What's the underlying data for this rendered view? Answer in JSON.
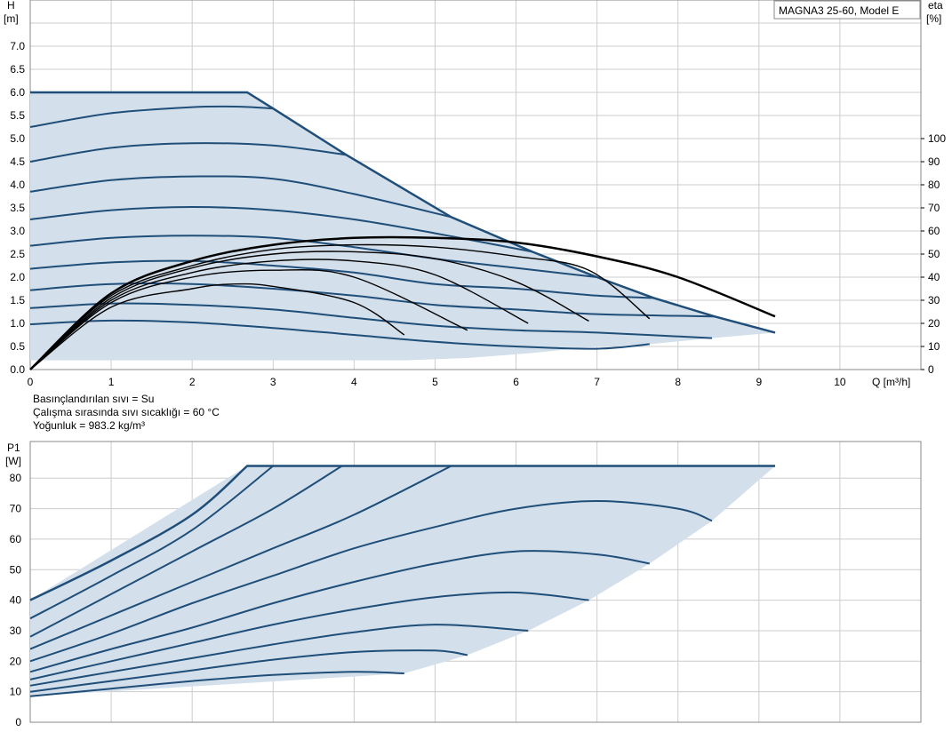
{
  "chart_data": [
    {
      "type": "line",
      "model_label": "MAGNA3 25-60, Model E",
      "ylabel_name": "H",
      "ylabel_unit": "[m]",
      "y2label_name": "eta",
      "y2label_unit": "[%]",
      "xlabel": "Q [m³/h]",
      "xlim": [
        0,
        11
      ],
      "ylim": [
        0,
        8
      ],
      "y2lim": [
        0,
        160
      ],
      "x_ticks": [
        "0",
        "1",
        "2",
        "3",
        "4",
        "5",
        "6",
        "7",
        "8",
        "9",
        "10"
      ],
      "y_ticks": [
        "0.0",
        "0.5",
        "1.0",
        "1.5",
        "2.0",
        "2.5",
        "3.0",
        "3.5",
        "4.0",
        "4.5",
        "5.0",
        "5.5",
        "6.0",
        "6.5",
        "7.0"
      ],
      "y2_ticks": [
        "0",
        "10",
        "20",
        "30",
        "40",
        "50",
        "60",
        "70",
        "80",
        "90",
        "100"
      ],
      "grid": true,
      "colors": {
        "head": "#1f4e79",
        "fill": "#d3dfeb",
        "efficiency": "#000000",
        "grid": "#cccccc"
      },
      "envelope": [
        [
          0,
          6.0
        ],
        [
          2.68,
          6.0
        ],
        [
          3.0,
          5.65
        ],
        [
          3.9,
          4.65
        ],
        [
          5.2,
          3.3
        ],
        [
          6.2,
          2.55
        ],
        [
          7.0,
          2.0
        ],
        [
          7.7,
          1.55
        ],
        [
          8.45,
          1.15
        ],
        [
          9.2,
          0.8
        ],
        [
          8.42,
          0.68
        ],
        [
          7.65,
          0.55
        ],
        [
          6.9,
          0.48
        ],
        [
          6.15,
          0.35
        ],
        [
          5.4,
          0.25
        ],
        [
          4.62,
          0.2
        ],
        [
          0,
          0.2
        ]
      ],
      "head_curves": [
        {
          "h0": 6.0,
          "points": [
            [
              0,
              6.0
            ],
            [
              2.68,
              6.0
            ],
            [
              3.0,
              5.65
            ],
            [
              3.9,
              4.65
            ],
            [
              5.2,
              3.3
            ],
            [
              6.2,
              2.55
            ],
            [
              7.0,
              2.0
            ],
            [
              7.7,
              1.55
            ],
            [
              8.45,
              1.15
            ],
            [
              9.2,
              0.8
            ]
          ]
        },
        {
          "h0": 5.25,
          "points": [
            [
              0,
              5.25
            ],
            [
              1.0,
              5.55
            ],
            [
              2.0,
              5.68
            ],
            [
              2.6,
              5.69
            ],
            [
              3.0,
              5.65
            ]
          ]
        },
        {
          "h0": 4.5,
          "points": [
            [
              0,
              4.5
            ],
            [
              1.0,
              4.8
            ],
            [
              2.0,
              4.9
            ],
            [
              3.0,
              4.85
            ],
            [
              3.9,
              4.65
            ]
          ]
        },
        {
          "h0": 3.85,
          "points": [
            [
              0,
              3.85
            ],
            [
              1.0,
              4.1
            ],
            [
              2.0,
              4.18
            ],
            [
              3.0,
              4.13
            ],
            [
              4.0,
              3.8
            ],
            [
              5.2,
              3.3
            ]
          ]
        },
        {
          "h0": 3.25,
          "points": [
            [
              0,
              3.25
            ],
            [
              1.0,
              3.45
            ],
            [
              2.0,
              3.52
            ],
            [
              3.0,
              3.45
            ],
            [
              4.0,
              3.25
            ],
            [
              5.0,
              2.95
            ],
            [
              6.2,
              2.55
            ]
          ]
        },
        {
          "h0": 2.68,
          "points": [
            [
              0,
              2.68
            ],
            [
              1.0,
              2.85
            ],
            [
              2.0,
              2.9
            ],
            [
              3.0,
              2.85
            ],
            [
              4.0,
              2.65
            ],
            [
              5.0,
              2.4
            ],
            [
              6.0,
              2.2
            ],
            [
              7.0,
              2.0
            ]
          ]
        },
        {
          "h0": 2.18,
          "points": [
            [
              0,
              2.18
            ],
            [
              1.0,
              2.32
            ],
            [
              2.0,
              2.35
            ],
            [
              3.0,
              2.25
            ],
            [
              4.0,
              2.1
            ],
            [
              5.0,
              1.85
            ],
            [
              6.0,
              1.75
            ],
            [
              7.0,
              1.6
            ],
            [
              7.7,
              1.55
            ]
          ]
        },
        {
          "h0": 1.72,
          "points": [
            [
              0,
              1.72
            ],
            [
              1.0,
              1.85
            ],
            [
              2.0,
              1.85
            ],
            [
              3.0,
              1.75
            ],
            [
              4.0,
              1.6
            ],
            [
              5.0,
              1.4
            ],
            [
              6.0,
              1.3
            ],
            [
              7.0,
              1.2
            ],
            [
              8.45,
              1.15
            ]
          ]
        },
        {
          "h0": 1.33,
          "points": [
            [
              0,
              1.33
            ],
            [
              1.0,
              1.43
            ],
            [
              2.0,
              1.4
            ],
            [
              3.0,
              1.3
            ],
            [
              4.0,
              1.12
            ],
            [
              5.0,
              0.95
            ],
            [
              6.0,
              0.85
            ],
            [
              7.0,
              0.8
            ],
            [
              8.42,
              0.68
            ]
          ]
        },
        {
          "h0": 0.98,
          "points": [
            [
              0,
              0.98
            ],
            [
              1.0,
              1.06
            ],
            [
              2.0,
              1.02
            ],
            [
              3.0,
              0.9
            ],
            [
              4.0,
              0.75
            ],
            [
              5.0,
              0.6
            ],
            [
              6.0,
              0.5
            ],
            [
              7.0,
              0.45
            ],
            [
              7.65,
              0.55
            ]
          ]
        }
      ],
      "efficiency_curves": [
        {
          "points": [
            [
              0,
              0
            ],
            [
              1.0,
              33
            ],
            [
              2.0,
              47
            ],
            [
              3.0,
              54
            ],
            [
              4.0,
              57
            ],
            [
              5.0,
              57
            ],
            [
              6.0,
              55
            ],
            [
              7.0,
              49
            ],
            [
              8.0,
              40
            ],
            [
              9.2,
              23
            ]
          ]
        },
        {
          "points": [
            [
              0,
              0
            ],
            [
              1.0,
              32
            ],
            [
              2.0,
              45
            ],
            [
              3.0,
              52
            ],
            [
              4.0,
              54
            ],
            [
              5.0,
              53
            ],
            [
              6.0,
              49
            ],
            [
              6.9,
              43
            ],
            [
              7.65,
              22
            ]
          ]
        },
        {
          "points": [
            [
              0,
              0
            ],
            [
              1.0,
              31
            ],
            [
              2.0,
              44
            ],
            [
              3.0,
              50
            ],
            [
              4.0,
              51
            ],
            [
              5.0,
              48
            ],
            [
              6.0,
              38
            ],
            [
              6.9,
              21
            ]
          ]
        },
        {
          "points": [
            [
              0,
              0
            ],
            [
              1.0,
              30
            ],
            [
              2.0,
              42
            ],
            [
              3.0,
              47
            ],
            [
              4.0,
              47
            ],
            [
              5.0,
              41
            ],
            [
              6.15,
              20
            ]
          ]
        },
        {
          "points": [
            [
              0,
              0
            ],
            [
              1.0,
              29
            ],
            [
              2.0,
              40
            ],
            [
              3.0,
              43
            ],
            [
              4.0,
              40
            ],
            [
              5.4,
              17
            ]
          ]
        },
        {
          "points": [
            [
              0,
              0
            ],
            [
              1.0,
              27
            ],
            [
              2.0,
              35
            ],
            [
              2.5,
              37
            ],
            [
              3.0,
              36
            ],
            [
              4.0,
              29
            ],
            [
              4.62,
              15
            ]
          ]
        }
      ]
    },
    {
      "type": "line",
      "ylabel_name": "P1",
      "ylabel_unit": "[W]",
      "xlim": [
        0,
        11
      ],
      "ylim": [
        0,
        92
      ],
      "y_ticks": [
        "0",
        "10",
        "20",
        "30",
        "40",
        "50",
        "60",
        "70",
        "80"
      ],
      "grid": true,
      "colors": {
        "curve": "#1f4e79",
        "fill": "#d3dfeb",
        "grid": "#cccccc"
      },
      "envelope": [
        [
          0,
          40
        ],
        [
          2.68,
          84
        ],
        [
          9.2,
          84
        ],
        [
          8.42,
          66
        ],
        [
          7.65,
          52
        ],
        [
          6.9,
          40
        ],
        [
          6.15,
          30
        ],
        [
          5.4,
          22
        ],
        [
          4.62,
          16
        ],
        [
          0,
          8.5
        ]
      ],
      "power_curves": [
        {
          "points": [
            [
              0,
              40
            ],
            [
              1.0,
              53
            ],
            [
              2.0,
              68
            ],
            [
              2.68,
              84
            ],
            [
              9.2,
              84
            ]
          ]
        },
        {
          "points": [
            [
              0,
              34
            ],
            [
              1.0,
              48
            ],
            [
              2.0,
              63
            ],
            [
              3.0,
              84
            ]
          ]
        },
        {
          "points": [
            [
              0,
              28
            ],
            [
              1.0,
              42
            ],
            [
              2.0,
              56
            ],
            [
              3.0,
              70
            ],
            [
              3.85,
              84
            ]
          ]
        },
        {
          "points": [
            [
              0,
              24
            ],
            [
              1.0,
              35
            ],
            [
              2.0,
              46
            ],
            [
              3.0,
              57
            ],
            [
              4.0,
              68
            ],
            [
              5.2,
              84
            ]
          ]
        },
        {
          "points": [
            [
              0,
              20
            ],
            [
              1.0,
              29
            ],
            [
              2.0,
              39
            ],
            [
              3.0,
              48
            ],
            [
              4.0,
              57
            ],
            [
              5.0,
              64
            ],
            [
              6.0,
              70
            ],
            [
              7.0,
              72.5
            ],
            [
              8.0,
              70
            ],
            [
              8.42,
              66
            ]
          ]
        },
        {
          "points": [
            [
              0,
              16.5
            ],
            [
              1.0,
              24
            ],
            [
              2.0,
              31
            ],
            [
              3.0,
              39
            ],
            [
              4.0,
              46
            ],
            [
              5.0,
              52
            ],
            [
              6.0,
              56
            ],
            [
              7.0,
              55
            ],
            [
              7.65,
              52
            ]
          ]
        },
        {
          "points": [
            [
              0,
              14
            ],
            [
              1.0,
              20
            ],
            [
              2.0,
              26
            ],
            [
              3.0,
              32
            ],
            [
              4.0,
              37
            ],
            [
              5.0,
              41
            ],
            [
              6.0,
              42.5
            ],
            [
              6.9,
              40
            ]
          ]
        },
        {
          "points": [
            [
              0,
              12
            ],
            [
              1.0,
              16.5
            ],
            [
              2.0,
              21
            ],
            [
              3.0,
              25.5
            ],
            [
              4.0,
              29.5
            ],
            [
              5.0,
              32
            ],
            [
              6.15,
              30
            ]
          ]
        },
        {
          "points": [
            [
              0,
              10
            ],
            [
              1.0,
              13.5
            ],
            [
              2.0,
              17
            ],
            [
              3.0,
              20.5
            ],
            [
              4.0,
              23
            ],
            [
              5.0,
              23.5
            ],
            [
              5.4,
              22
            ]
          ]
        },
        {
          "points": [
            [
              0,
              8.5
            ],
            [
              1.0,
              11
            ],
            [
              2.0,
              13.5
            ],
            [
              3.0,
              15.5
            ],
            [
              4.0,
              16.5
            ],
            [
              4.62,
              16
            ]
          ]
        }
      ]
    }
  ],
  "info": {
    "line1": "Basınçlandırılan sıvı = Su",
    "line2": "Çalışma sırasında sıvı sıcaklığı = 60 °C",
    "line3": "Yoğunluk = 983.2 kg/m³"
  }
}
